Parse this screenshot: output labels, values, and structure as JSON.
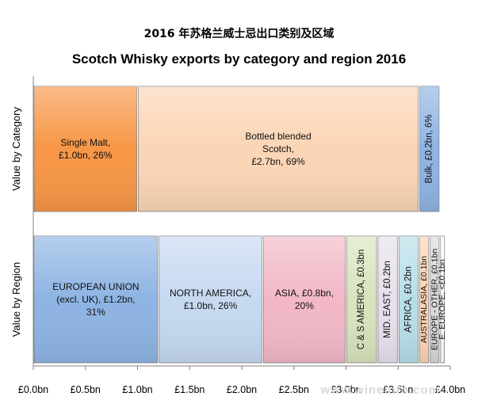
{
  "page_title": "2016 年苏格兰威士忌出口类别及区域",
  "chart_data": {
    "type": "bar",
    "orientation": "horizontal-stacked",
    "title": "Scotch Whisky exports by category and region 2016",
    "xlabel": "",
    "ylabel": "",
    "xlim": [
      0,
      4.0
    ],
    "x_ticks": [
      0,
      0.5,
      1.0,
      1.5,
      2.0,
      2.5,
      3.0,
      3.5,
      4.0
    ],
    "x_tick_labels": [
      "£0.0bn",
      "£0.5bn",
      "£1.0bn",
      "£1.5bn",
      "£2.0bn",
      "£2.5bn",
      "£3.0bn",
      "£3.5bn",
      "£4.0bn"
    ],
    "grid": false,
    "legend": "none",
    "rows": [
      {
        "label": "Value by Category",
        "segments": [
          {
            "name": "Single Malt",
            "value": 1.0,
            "percent": 26,
            "lines": [
              "Single Malt,",
              "£1.0bn, 26%"
            ],
            "vertical": false,
            "color": "#f79646"
          },
          {
            "name": "Bottled blended Scotch",
            "value": 2.7,
            "percent": 69,
            "lines": [
              "Bottled blended",
              "Scotch,",
              "£2.7bn, 69%"
            ],
            "vertical": false,
            "color": "#fbd5b5"
          },
          {
            "name": "Bulk",
            "value": 0.2,
            "percent": 6,
            "lines": [
              "Bulk, £0.2bn, 6%"
            ],
            "vertical": true,
            "color": "#8eb4e3"
          }
        ]
      },
      {
        "label": "Value by Region",
        "segments": [
          {
            "name": "EUROPEAN UNION (excl. UK)",
            "value": 1.2,
            "percent": 31,
            "lines": [
              "EUROPEAN UNION",
              "(excl. UK), £1.2bn,",
              "31%"
            ],
            "vertical": false,
            "color": "#8eb4e3"
          },
          {
            "name": "NORTH AMERICA",
            "value": 1.0,
            "percent": 26,
            "lines": [
              "NORTH AMERICA,",
              "£1.0bn, 26%"
            ],
            "vertical": false,
            "color": "#c6d9f1"
          },
          {
            "name": "ASIA",
            "value": 0.8,
            "percent": 20,
            "lines": [
              "ASIA, £0.8bn,",
              "20%"
            ],
            "vertical": false,
            "color": "#f2b8c6"
          },
          {
            "name": "C & S AMERICA",
            "value": 0.3,
            "lines": [
              "C & S AMERICA, £0.3bn"
            ],
            "vertical": true,
            "color": "#d7e4bd"
          },
          {
            "name": "MID. EAST",
            "value": 0.2,
            "lines": [
              "MID. EAST, £0.2bn"
            ],
            "vertical": true,
            "color": "#e6e0ec"
          },
          {
            "name": "AFRICA",
            "value": 0.2,
            "lines": [
              "AFRICA, £0.2bn"
            ],
            "vertical": true,
            "color": "#b7dee8"
          },
          {
            "name": "AUSTRALASIA",
            "value": 0.1,
            "lines": [
              "AUSTRALASIA, £0.1bn"
            ],
            "vertical": true,
            "color": "#fcd5b4"
          },
          {
            "name": "EUROPE - OTHER",
            "value": 0.1,
            "lines": [
              "EUROPE - OTHER, £0.1bn"
            ],
            "vertical": true,
            "color": "#d9d9d9"
          },
          {
            "name": "E. EUROPE",
            "value": 0.05,
            "lines": [
              "E. EUROPE, <£0.1bn"
            ],
            "vertical": true,
            "color": "#ffffff"
          }
        ]
      }
    ]
  },
  "watermark": "www.wineinfo.com"
}
